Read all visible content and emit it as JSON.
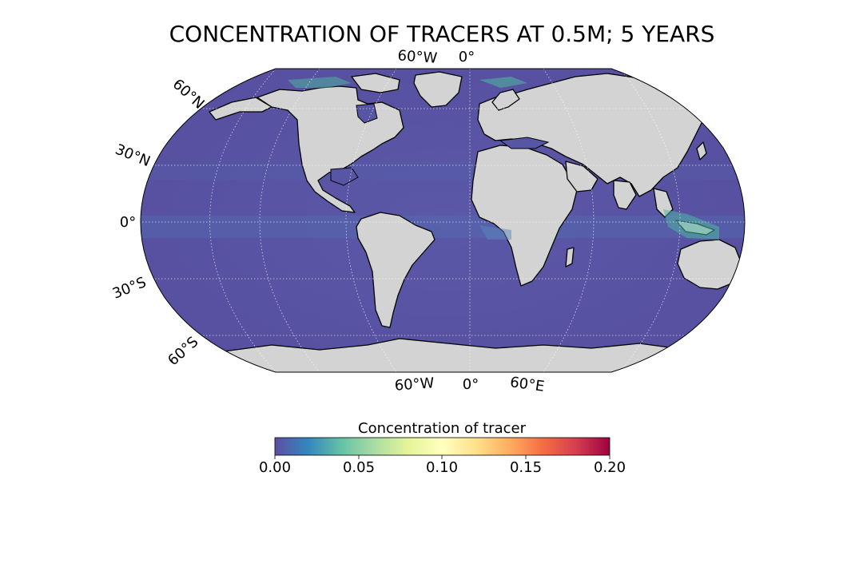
{
  "title": "CONCENTRATION OF TRACERS AT 0.5M; 5 YEARS",
  "map": {
    "projection": "Robinson",
    "gridlines": "dotted",
    "ocean_color": "#5b54a3",
    "land_color": "#d3d3d3",
    "coastline_color": "#000000",
    "top_labels": [
      "60°W",
      "0°"
    ],
    "bottom_labels": [
      "60°W",
      "0°",
      "60°E"
    ],
    "left_labels": [
      "60°N",
      "30°N",
      "0°",
      "30°S",
      "60°S"
    ]
  },
  "colorbar": {
    "label": "Concentration of tracer",
    "colormap": "Spectral_r",
    "colors": [
      "#5e4fa2",
      "#3288bd",
      "#66c2a5",
      "#abdda4",
      "#e6f598",
      "#ffffbf",
      "#fee08b",
      "#fdae61",
      "#f46d43",
      "#d53e4f",
      "#9e0142"
    ],
    "ticks": [
      "0.00",
      "0.05",
      "0.10",
      "0.15",
      "0.20"
    ],
    "range": [
      0,
      0.2
    ]
  }
}
